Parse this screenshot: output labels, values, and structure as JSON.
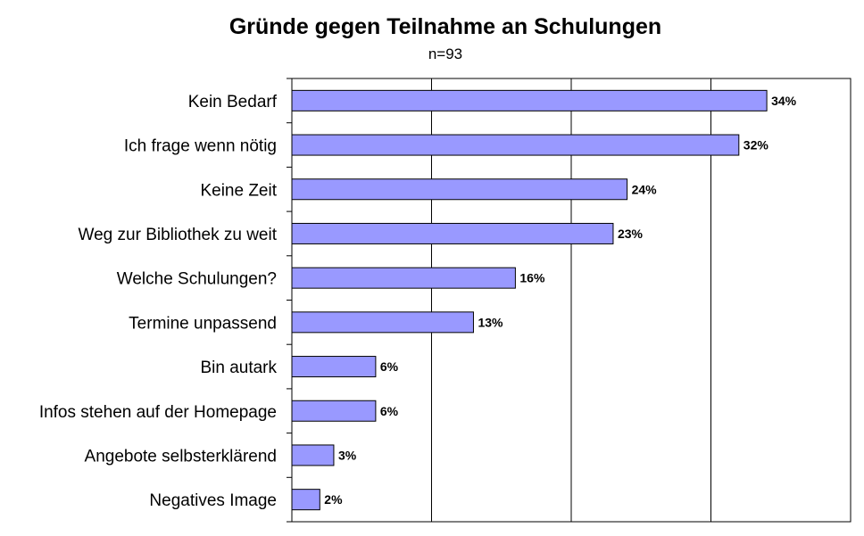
{
  "chart_data": {
    "type": "bar",
    "orientation": "horizontal",
    "title": "Gründe gegen Teilnahme an Schulungen",
    "subtitle": "n=93",
    "categories": [
      "Kein Bedarf",
      "Ich frage wenn nötig",
      "Keine Zeit",
      "Weg zur Bibliothek zu weit",
      "Welche Schulungen?",
      "Termine unpassend",
      "Bin autark",
      "Infos stehen auf der Homepage",
      "Angebote selbsterklärend",
      "Negatives Image"
    ],
    "values": [
      34,
      32,
      24,
      23,
      16,
      13,
      6,
      6,
      3,
      2
    ],
    "data_labels": [
      "34%",
      "32%",
      "24%",
      "23%",
      "16%",
      "13%",
      "6%",
      "6%",
      "3%",
      "2%"
    ],
    "xlim": [
      0,
      40
    ],
    "gridlines_x": [
      10,
      20,
      30
    ],
    "grid": true,
    "legend": "none",
    "bar_color": "#9999ff",
    "bar_border_color": "#000000"
  }
}
